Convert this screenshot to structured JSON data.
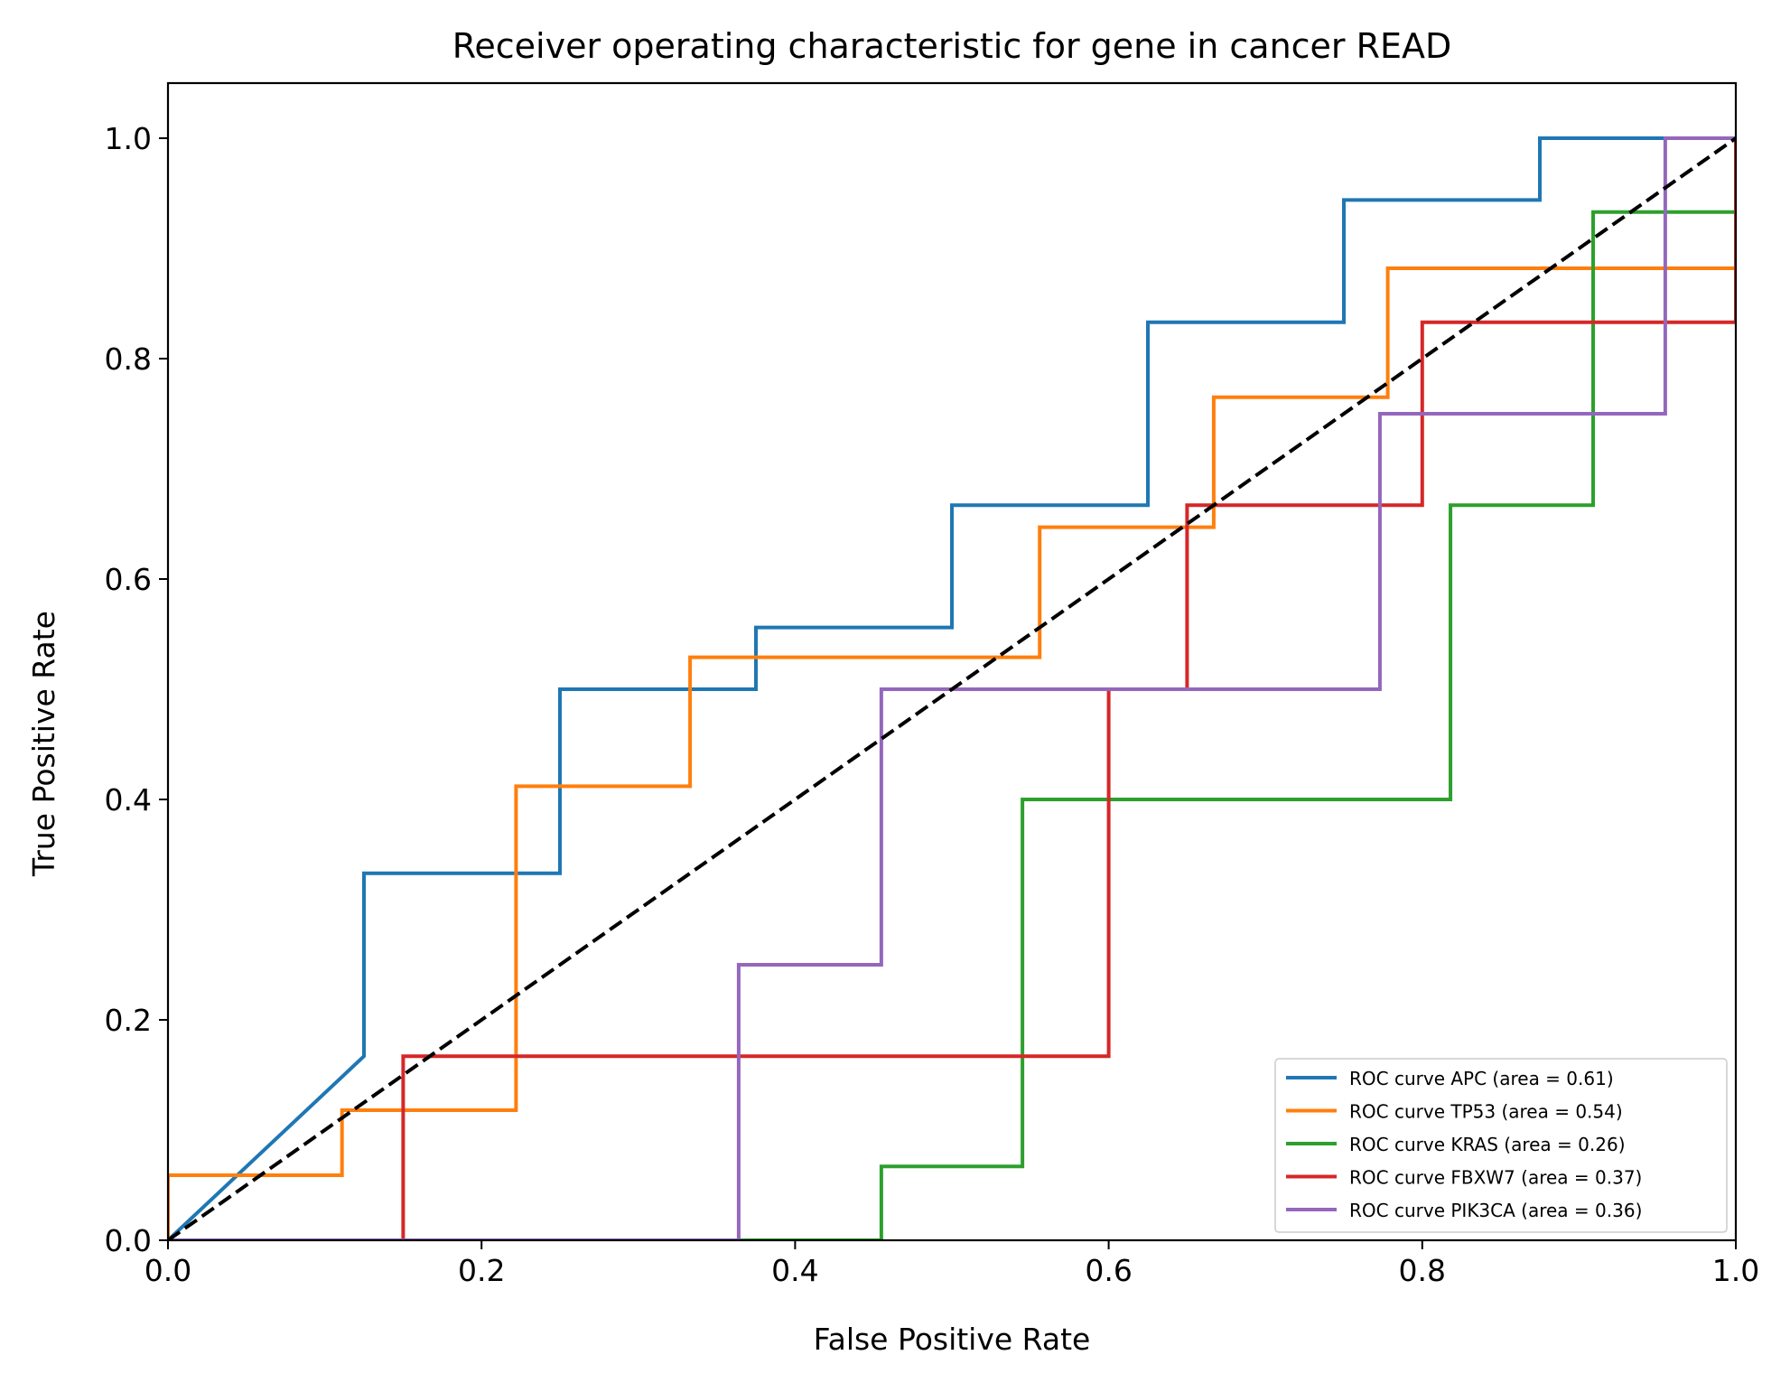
{
  "chart_data": {
    "type": "line",
    "title": "Receiver operating characteristic for gene in cancer READ",
    "xlabel": "False Positive Rate",
    "ylabel": "True Positive Rate",
    "xlim": [
      0.0,
      1.0
    ],
    "ylim": [
      0.0,
      1.05
    ],
    "xticks": [
      "0.0",
      "0.2",
      "0.4",
      "0.6",
      "0.8",
      "1.0"
    ],
    "yticks": [
      "0.0",
      "0.2",
      "0.4",
      "0.6",
      "0.8",
      "1.0"
    ],
    "grid": false,
    "legend_position": "lower-right",
    "series": [
      {
        "name": "ROC curve APC (area = 0.61)",
        "color": "#1f77b4",
        "x": [
          0.0,
          0.125,
          0.125,
          0.25,
          0.25,
          0.375,
          0.375,
          0.5,
          0.5,
          0.625,
          0.625,
          0.75,
          0.75,
          0.875,
          0.875,
          1.0
        ],
        "y": [
          0.0,
          0.167,
          0.333,
          0.333,
          0.5,
          0.5,
          0.556,
          0.556,
          0.667,
          0.667,
          0.833,
          0.833,
          0.944,
          0.944,
          1.0,
          1.0
        ]
      },
      {
        "name": "ROC curve TP53 (area = 0.54)",
        "color": "#ff7f0e",
        "x": [
          0.0,
          0.0,
          0.111,
          0.111,
          0.222,
          0.222,
          0.333,
          0.333,
          0.556,
          0.556,
          0.667,
          0.667,
          0.778,
          0.778,
          1.0,
          1.0
        ],
        "y": [
          0.0,
          0.059,
          0.059,
          0.118,
          0.118,
          0.412,
          0.412,
          0.529,
          0.529,
          0.647,
          0.647,
          0.765,
          0.765,
          0.882,
          0.882,
          1.0
        ]
      },
      {
        "name": "ROC curve KRAS (area = 0.26)",
        "color": "#2ca02c",
        "x": [
          0.0,
          0.455,
          0.455,
          0.545,
          0.545,
          0.818,
          0.818,
          0.909,
          0.909,
          1.0,
          1.0
        ],
        "y": [
          0.0,
          0.0,
          0.067,
          0.067,
          0.4,
          0.4,
          0.667,
          0.667,
          0.933,
          0.933,
          1.0
        ]
      },
      {
        "name": "ROC curve FBXW7 (area = 0.37)",
        "color": "#d62728",
        "x": [
          0.0,
          0.15,
          0.15,
          0.6,
          0.6,
          0.65,
          0.65,
          0.8,
          0.8,
          1.0,
          1.0
        ],
        "y": [
          0.0,
          0.0,
          0.167,
          0.167,
          0.5,
          0.5,
          0.667,
          0.667,
          0.833,
          0.833,
          1.0
        ]
      },
      {
        "name": "ROC curve PIK3CA (area = 0.36)",
        "color": "#9467bd",
        "x": [
          0.0,
          0.364,
          0.364,
          0.455,
          0.455,
          0.773,
          0.773,
          0.955,
          0.955,
          1.0
        ],
        "y": [
          0.0,
          0.0,
          0.25,
          0.25,
          0.5,
          0.5,
          0.75,
          0.75,
          1.0,
          1.0
        ]
      }
    ],
    "reference_line": {
      "style": "dashed",
      "color": "#000000",
      "x": [
        0.0,
        1.0
      ],
      "y": [
        0.0,
        1.0
      ]
    }
  }
}
